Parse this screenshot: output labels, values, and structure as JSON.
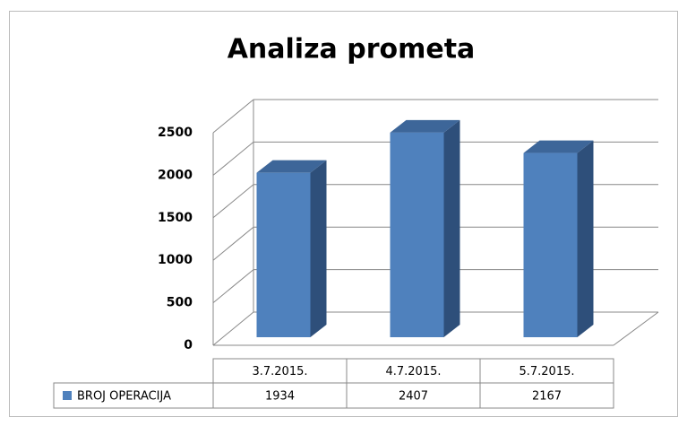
{
  "chart_data": {
    "type": "bar3d",
    "title": "Analiza prometa",
    "categories": [
      "3.7.2015.",
      "4.7.2015.",
      "5.7.2015."
    ],
    "series": [
      {
        "name": "BROJ OPERACIJA",
        "color": "#4f81bd",
        "values": [
          1934,
          2407,
          2167
        ]
      }
    ],
    "ylim": [
      0,
      2500
    ],
    "yticks": [
      0,
      500,
      1000,
      1500,
      2000,
      2500
    ],
    "grid": true,
    "legend": "table"
  }
}
